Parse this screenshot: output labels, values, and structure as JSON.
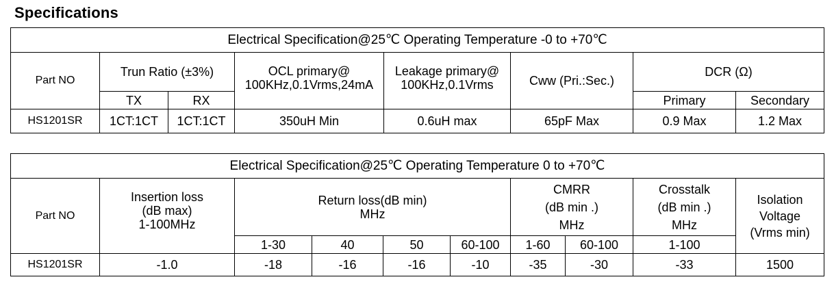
{
  "title": "Specifications",
  "table1": {
    "caption": "Electrical Specification@25℃    Operating Temperature -0 to +70℃",
    "headers": {
      "part_no": "Part  NO",
      "turn_ratio": "Trun Ratio  (±3%)",
      "tx": "TX",
      "rx": "RX",
      "ocl_line1": "OCL primary@",
      "ocl_line2": "100KHz,0.1Vrms,24mA",
      "leakage_line1": "Leakage primary@",
      "leakage_line2": "100KHz,0.1Vrms",
      "cww": "Cww  (Pri.:Sec.)",
      "dcr": "DCR (Ω)",
      "primary": "Primary",
      "secondary": "Secondary"
    },
    "rows": [
      {
        "part_no": "HS1201SR",
        "tx": "1CT:1CT",
        "rx": "1CT:1CT",
        "ocl": "350uH Min",
        "leakage": "0.6uH max",
        "cww": "65pF Max",
        "dcr_primary": "0.9 Max",
        "dcr_secondary": "1.2 Max"
      }
    ]
  },
  "table2": {
    "caption": "Electrical Specification@25℃    Operating Temperature 0 to +70℃",
    "headers": {
      "part_no": "Part  NO",
      "insertion_line1": "Insertion loss",
      "insertion_line2": "(dB max)",
      "insertion_line3": "1-100MHz",
      "return_line1": "Return loss(dB min)",
      "return_line2": "MHz",
      "return_ranges": [
        "1-30",
        "40",
        "50",
        "60-100"
      ],
      "cmrr_line1": "CMRR",
      "cmrr_line2": "(dB min .)",
      "cmrr_line3": "MHz",
      "cmrr_ranges": [
        "1-60",
        "60-100"
      ],
      "crosstalk_line1": "Crosstalk",
      "crosstalk_line2": "(dB min .)",
      "crosstalk_line3": "MHz",
      "crosstalk_range": "1-100",
      "isolation_line1": "Isolation",
      "isolation_line2": "Voltage",
      "isolation_line3": "(Vrms min)"
    },
    "rows": [
      {
        "part_no": "HS1201SR",
        "insertion": "-1.0",
        "return_values": [
          "-18",
          "-16",
          "-16",
          "-10"
        ],
        "cmrr_values": [
          "-35",
          "-30"
        ],
        "crosstalk": "-33",
        "isolation": "1500"
      }
    ]
  }
}
